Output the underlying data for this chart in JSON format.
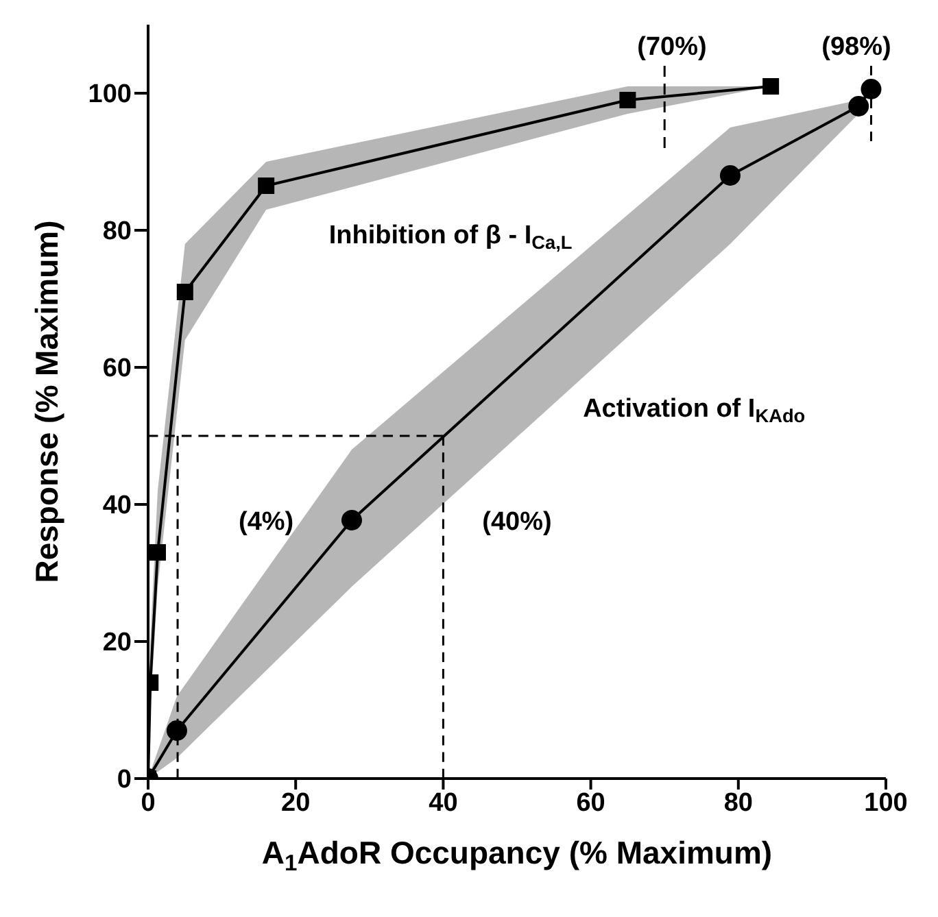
{
  "chart_data": {
    "type": "line",
    "xlabel": "A$_{1}$AdoR Occupancy (% Maximum)",
    "ylabel": "Response (% Maximum)",
    "xlim": [
      0,
      100
    ],
    "xticks": [
      0,
      20,
      40,
      60,
      80,
      100
    ],
    "ylim": [
      0,
      110
    ],
    "yticks": [
      0,
      20,
      40,
      60,
      80,
      100
    ],
    "grid": false,
    "legend": false,
    "series": [
      {
        "color": "#000000",
        "marker": "square",
        "x": [
          0,
          0.3,
          1.3,
          5,
          16,
          65,
          84.4
        ],
        "values": [
          0,
          14,
          33,
          71,
          86.5,
          99,
          101
        ],
        "lower": [
          0,
          10,
          28,
          64,
          83,
          97,
          101
        ],
        "upper": [
          0,
          20,
          42,
          78,
          90,
          101,
          101
        ]
      },
      {
        "color": "#000000",
        "marker": "circle",
        "x": [
          0,
          3.9,
          27.6,
          78.9,
          96.3,
          98
        ],
        "values": [
          0,
          7,
          37.7,
          88,
          98.1,
          100.6
        ],
        "lower": [
          0,
          3,
          28,
          78,
          97,
          100.6
        ],
        "upper": [
          0,
          12,
          48,
          95,
          99,
          100.6
        ]
      },
      {
        "color": "#000000",
        "marker": "none",
        "line_style": "dashed",
        "x": [
          0,
          40
        ],
        "values": [
          50,
          50
        ]
      },
      {
        "color": "#000000",
        "marker": "none",
        "line_style": "dashed",
        "x": [
          4,
          4
        ],
        "values": [
          0,
          50
        ]
      },
      {
        "color": "#000000",
        "marker": "none",
        "line_style": "dashed",
        "x": [
          40,
          40
        ],
        "values": [
          0,
          50
        ]
      },
      {
        "color": "#000000",
        "marker": "none",
        "line_style": "dashed",
        "x": [
          70,
          70
        ],
        "values": [
          92,
          104
        ]
      },
      {
        "color": "#000000",
        "marker": "none",
        "line_style": "dashed",
        "x": [
          98,
          98
        ],
        "values": [
          93,
          104
        ]
      }
    ],
    "annotations": [
      "Inhibition of β - I$_{Ca,L}$",
      "Activation of I$_{KAdo}$",
      "(4%)",
      "(40%)",
      "(70%)",
      "(98%)"
    ]
  }
}
